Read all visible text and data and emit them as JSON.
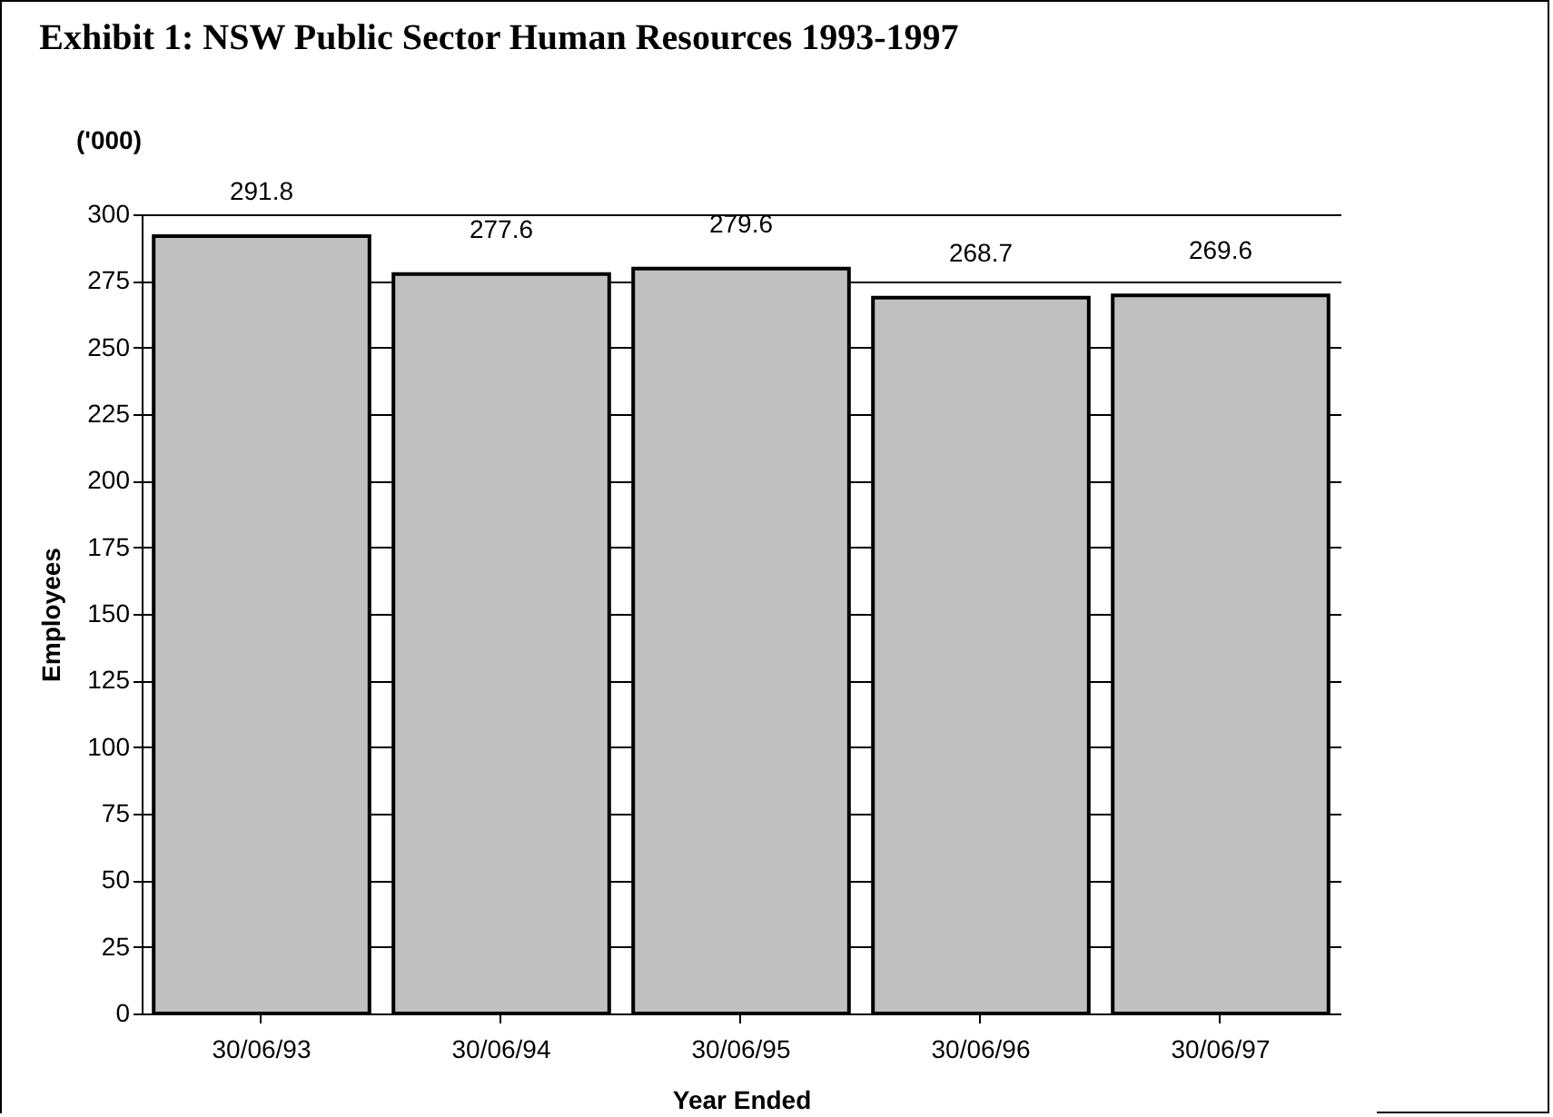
{
  "chart_data": {
    "type": "bar",
    "title": "Exhibit 1:        NSW Public Sector Human Resources 1993-1997",
    "xlabel": "Year Ended",
    "ylabel": "Employees",
    "annotations": [
      "('000)"
    ],
    "categories": [
      "30/06/93",
      "30/06/94",
      "30/06/95",
      "30/06/96",
      "30/06/97"
    ],
    "values": [
      291.8,
      277.6,
      279.6,
      268.7,
      269.6
    ],
    "color": "#c0c0c0",
    "ylim": [
      0,
      300
    ],
    "yticks": [
      0,
      25,
      50,
      75,
      100,
      125,
      150,
      175,
      200,
      225,
      250,
      275,
      300
    ],
    "grid": "y",
    "data_labels": true
  }
}
